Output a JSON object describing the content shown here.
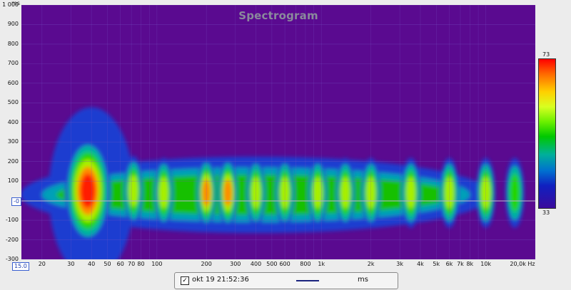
{
  "chart": {
    "title": "Spectrogram",
    "y_unit": "ms",
    "x_unit": "Hz",
    "window_value": "15.0",
    "cursor_value": "-0"
  },
  "y_ticks": [
    "1 000",
    "900",
    "800",
    "700",
    "600",
    "500",
    "400",
    "300",
    "200",
    "100",
    "-0",
    "-100",
    "-200",
    "-300"
  ],
  "x_ticks": [
    "20",
    "30",
    "40",
    "50",
    "60",
    "70",
    "80",
    "100",
    "200",
    "300",
    "400",
    "500",
    "600",
    "800",
    "1k",
    "2k",
    "3k",
    "4k",
    "5k",
    "6k",
    "7k",
    "8k",
    "10k",
    "20,0k"
  ],
  "colorbar": {
    "max": "73",
    "min": "33"
  },
  "legend": {
    "label": "okt 19 21:52:36",
    "unit": "ms",
    "checked": "✓",
    "line_color": "#1a237e"
  },
  "chart_data": {
    "type": "heatmap",
    "title": "Spectrogram",
    "xlabel": "Hz",
    "ylabel": "ms",
    "x_scale": "log",
    "xlim": [
      15,
      20000
    ],
    "ylim": [
      -300,
      1000
    ],
    "color_range": [
      33,
      73
    ],
    "series": [
      {
        "name": "okt 19 21:52:36",
        "peaks": [
          {
            "freq": 38,
            "time_ms": 50,
            "level": 73
          },
          {
            "freq": 72,
            "time_ms": 50,
            "level": 62
          },
          {
            "freq": 110,
            "time_ms": 40,
            "level": 64
          },
          {
            "freq": 200,
            "time_ms": 40,
            "level": 68
          },
          {
            "freq": 270,
            "time_ms": 40,
            "level": 66
          },
          {
            "freq": 400,
            "time_ms": 40,
            "level": 62
          },
          {
            "freq": 600,
            "time_ms": 40,
            "level": 62
          },
          {
            "freq": 950,
            "time_ms": 40,
            "level": 60
          },
          {
            "freq": 1400,
            "time_ms": 40,
            "level": 64
          },
          {
            "freq": 2000,
            "time_ms": 40,
            "level": 62
          },
          {
            "freq": 3500,
            "time_ms": 40,
            "level": 60
          },
          {
            "freq": 6000,
            "time_ms": 40,
            "level": 60
          },
          {
            "freq": 10000,
            "time_ms": 40,
            "level": 62
          },
          {
            "freq": 15000,
            "time_ms": 40,
            "level": 58
          }
        ]
      }
    ]
  }
}
